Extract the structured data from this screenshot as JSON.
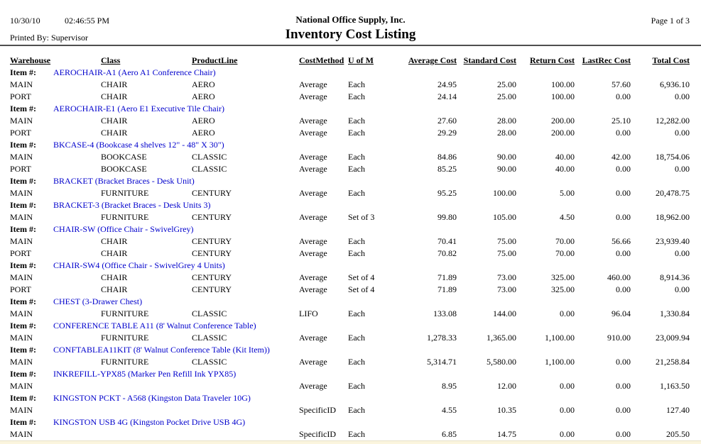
{
  "header": {
    "date": "10/30/10",
    "time": "02:46:55 PM",
    "printed_by": "Printed By: Supervisor",
    "company": "National Office Supply, Inc.",
    "report_title": "Inventory Cost Listing",
    "page_label": "Page 1 of 3"
  },
  "colors": {
    "item_link": "#0000CC",
    "text": "#000000",
    "header_rule": "#4f4f4f",
    "bottom_strip": "#FBF5DE"
  },
  "table": {
    "item_label": "Item #:",
    "columns": [
      "Warehouse",
      "Class",
      "ProductLine",
      "CostMethod",
      "U of M",
      "Average Cost",
      "Standard Cost",
      "Return Cost",
      "LastRec Cost",
      "Total Cost"
    ],
    "items": [
      {
        "item": "AEROCHAIR-A1 (Aero A1 Conference Chair)",
        "rows": [
          {
            "warehouse": "MAIN",
            "class": "CHAIR",
            "product_line": "AERO",
            "cost_method": "Average",
            "uom": "Each",
            "average_cost": "24.95",
            "standard_cost": "25.00",
            "return_cost": "100.00",
            "last_rec_cost": "57.60",
            "total_cost": "6,936.10"
          },
          {
            "warehouse": "PORT",
            "class": "CHAIR",
            "product_line": "AERO",
            "cost_method": "Average",
            "uom": "Each",
            "average_cost": "24.14",
            "standard_cost": "25.00",
            "return_cost": "100.00",
            "last_rec_cost": "0.00",
            "total_cost": "0.00"
          }
        ]
      },
      {
        "item": "AEROCHAIR-E1 (Aero E1 Executive Tile Chair)",
        "rows": [
          {
            "warehouse": "MAIN",
            "class": "CHAIR",
            "product_line": "AERO",
            "cost_method": "Average",
            "uom": "Each",
            "average_cost": "27.60",
            "standard_cost": "28.00",
            "return_cost": "200.00",
            "last_rec_cost": "25.10",
            "total_cost": "12,282.00"
          },
          {
            "warehouse": "PORT",
            "class": "CHAIR",
            "product_line": "AERO",
            "cost_method": "Average",
            "uom": "Each",
            "average_cost": "29.29",
            "standard_cost": "28.00",
            "return_cost": "200.00",
            "last_rec_cost": "0.00",
            "total_cost": "0.00"
          }
        ]
      },
      {
        "item": "BKCASE-4 (Bookcase 4 shelves 12\" - 48\" X 30\")",
        "rows": [
          {
            "warehouse": "MAIN",
            "class": "BOOKCASE",
            "product_line": "CLASSIC",
            "cost_method": "Average",
            "uom": "Each",
            "average_cost": "84.86",
            "standard_cost": "90.00",
            "return_cost": "40.00",
            "last_rec_cost": "42.00",
            "total_cost": "18,754.06"
          },
          {
            "warehouse": "PORT",
            "class": "BOOKCASE",
            "product_line": "CLASSIC",
            "cost_method": "Average",
            "uom": "Each",
            "average_cost": "85.25",
            "standard_cost": "90.00",
            "return_cost": "40.00",
            "last_rec_cost": "0.00",
            "total_cost": "0.00"
          }
        ]
      },
      {
        "item": "BRACKET (Bracket Braces - Desk Unit)",
        "rows": [
          {
            "warehouse": "MAIN",
            "class": "FURNITURE",
            "product_line": "CENTURY",
            "cost_method": "Average",
            "uom": "Each",
            "average_cost": "95.25",
            "standard_cost": "100.00",
            "return_cost": "5.00",
            "last_rec_cost": "0.00",
            "total_cost": "20,478.75"
          }
        ]
      },
      {
        "item": "BRACKET-3 (Bracket Braces - Desk Units 3)",
        "rows": [
          {
            "warehouse": "MAIN",
            "class": "FURNITURE",
            "product_line": "CENTURY",
            "cost_method": "Average",
            "uom": "Set of 3",
            "average_cost": "99.80",
            "standard_cost": "105.00",
            "return_cost": "4.50",
            "last_rec_cost": "0.00",
            "total_cost": "18,962.00"
          }
        ]
      },
      {
        "item": "CHAIR-SW (Office Chair - SwivelGrey)",
        "rows": [
          {
            "warehouse": "MAIN",
            "class": "CHAIR",
            "product_line": "CENTURY",
            "cost_method": "Average",
            "uom": "Each",
            "average_cost": "70.41",
            "standard_cost": "75.00",
            "return_cost": "70.00",
            "last_rec_cost": "56.66",
            "total_cost": "23,939.40"
          },
          {
            "warehouse": "PORT",
            "class": "CHAIR",
            "product_line": "CENTURY",
            "cost_method": "Average",
            "uom": "Each",
            "average_cost": "70.82",
            "standard_cost": "75.00",
            "return_cost": "70.00",
            "last_rec_cost": "0.00",
            "total_cost": "0.00"
          }
        ]
      },
      {
        "item": "CHAIR-SW4 (Office Chair - SwivelGrey 4 Units)",
        "rows": [
          {
            "warehouse": "MAIN",
            "class": "CHAIR",
            "product_line": "CENTURY",
            "cost_method": "Average",
            "uom": "Set of 4",
            "average_cost": "71.89",
            "standard_cost": "73.00",
            "return_cost": "325.00",
            "last_rec_cost": "460.00",
            "total_cost": "8,914.36"
          },
          {
            "warehouse": "PORT",
            "class": "CHAIR",
            "product_line": "CENTURY",
            "cost_method": "Average",
            "uom": "Set of 4",
            "average_cost": "71.89",
            "standard_cost": "73.00",
            "return_cost": "325.00",
            "last_rec_cost": "0.00",
            "total_cost": "0.00"
          }
        ]
      },
      {
        "item": "CHEST (3-Drawer Chest)",
        "rows": [
          {
            "warehouse": "MAIN",
            "class": "FURNITURE",
            "product_line": "CLASSIC",
            "cost_method": "LIFO",
            "uom": "Each",
            "average_cost": "133.08",
            "standard_cost": "144.00",
            "return_cost": "0.00",
            "last_rec_cost": "96.04",
            "total_cost": "1,330.84"
          }
        ]
      },
      {
        "item": "CONFERENCE TABLE A11 (8' Walnut Conference Table)",
        "rows": [
          {
            "warehouse": "MAIN",
            "class": "FURNITURE",
            "product_line": "CLASSIC",
            "cost_method": "Average",
            "uom": "Each",
            "average_cost": "1,278.33",
            "standard_cost": "1,365.00",
            "return_cost": "1,100.00",
            "last_rec_cost": "910.00",
            "total_cost": "23,009.94"
          }
        ]
      },
      {
        "item": "CONFTABLEA11KIT (8' Walnut Conference Table (Kit Item))",
        "rows": [
          {
            "warehouse": "MAIN",
            "class": "FURNITURE",
            "product_line": "CLASSIC",
            "cost_method": "Average",
            "uom": "Each",
            "average_cost": "5,314.71",
            "standard_cost": "5,580.00",
            "return_cost": "1,100.00",
            "last_rec_cost": "0.00",
            "total_cost": "21,258.84"
          }
        ]
      },
      {
        "item": "INKREFILL-YPX85 (Marker Pen Refill Ink YPX85)",
        "rows": [
          {
            "warehouse": "MAIN",
            "class": "",
            "product_line": "",
            "cost_method": "Average",
            "uom": "Each",
            "average_cost": "8.95",
            "standard_cost": "12.00",
            "return_cost": "0.00",
            "last_rec_cost": "0.00",
            "total_cost": "1,163.50"
          }
        ]
      },
      {
        "item": "KINGSTON PCKT - A568 (Kingston Data Traveler 10G)",
        "rows": [
          {
            "warehouse": "MAIN",
            "class": "",
            "product_line": "",
            "cost_method": "SpecificID",
            "uom": "Each",
            "average_cost": "4.55",
            "standard_cost": "10.35",
            "return_cost": "0.00",
            "last_rec_cost": "0.00",
            "total_cost": "127.40"
          }
        ]
      },
      {
        "item": "KINGSTON USB 4G (Kingston Pocket Drive USB 4G)",
        "rows": [
          {
            "warehouse": "MAIN",
            "class": "",
            "product_line": "",
            "cost_method": "SpecificID",
            "uom": "Each",
            "average_cost": "6.85",
            "standard_cost": "14.75",
            "return_cost": "0.00",
            "last_rec_cost": "0.00",
            "total_cost": "205.50"
          }
        ]
      }
    ]
  }
}
